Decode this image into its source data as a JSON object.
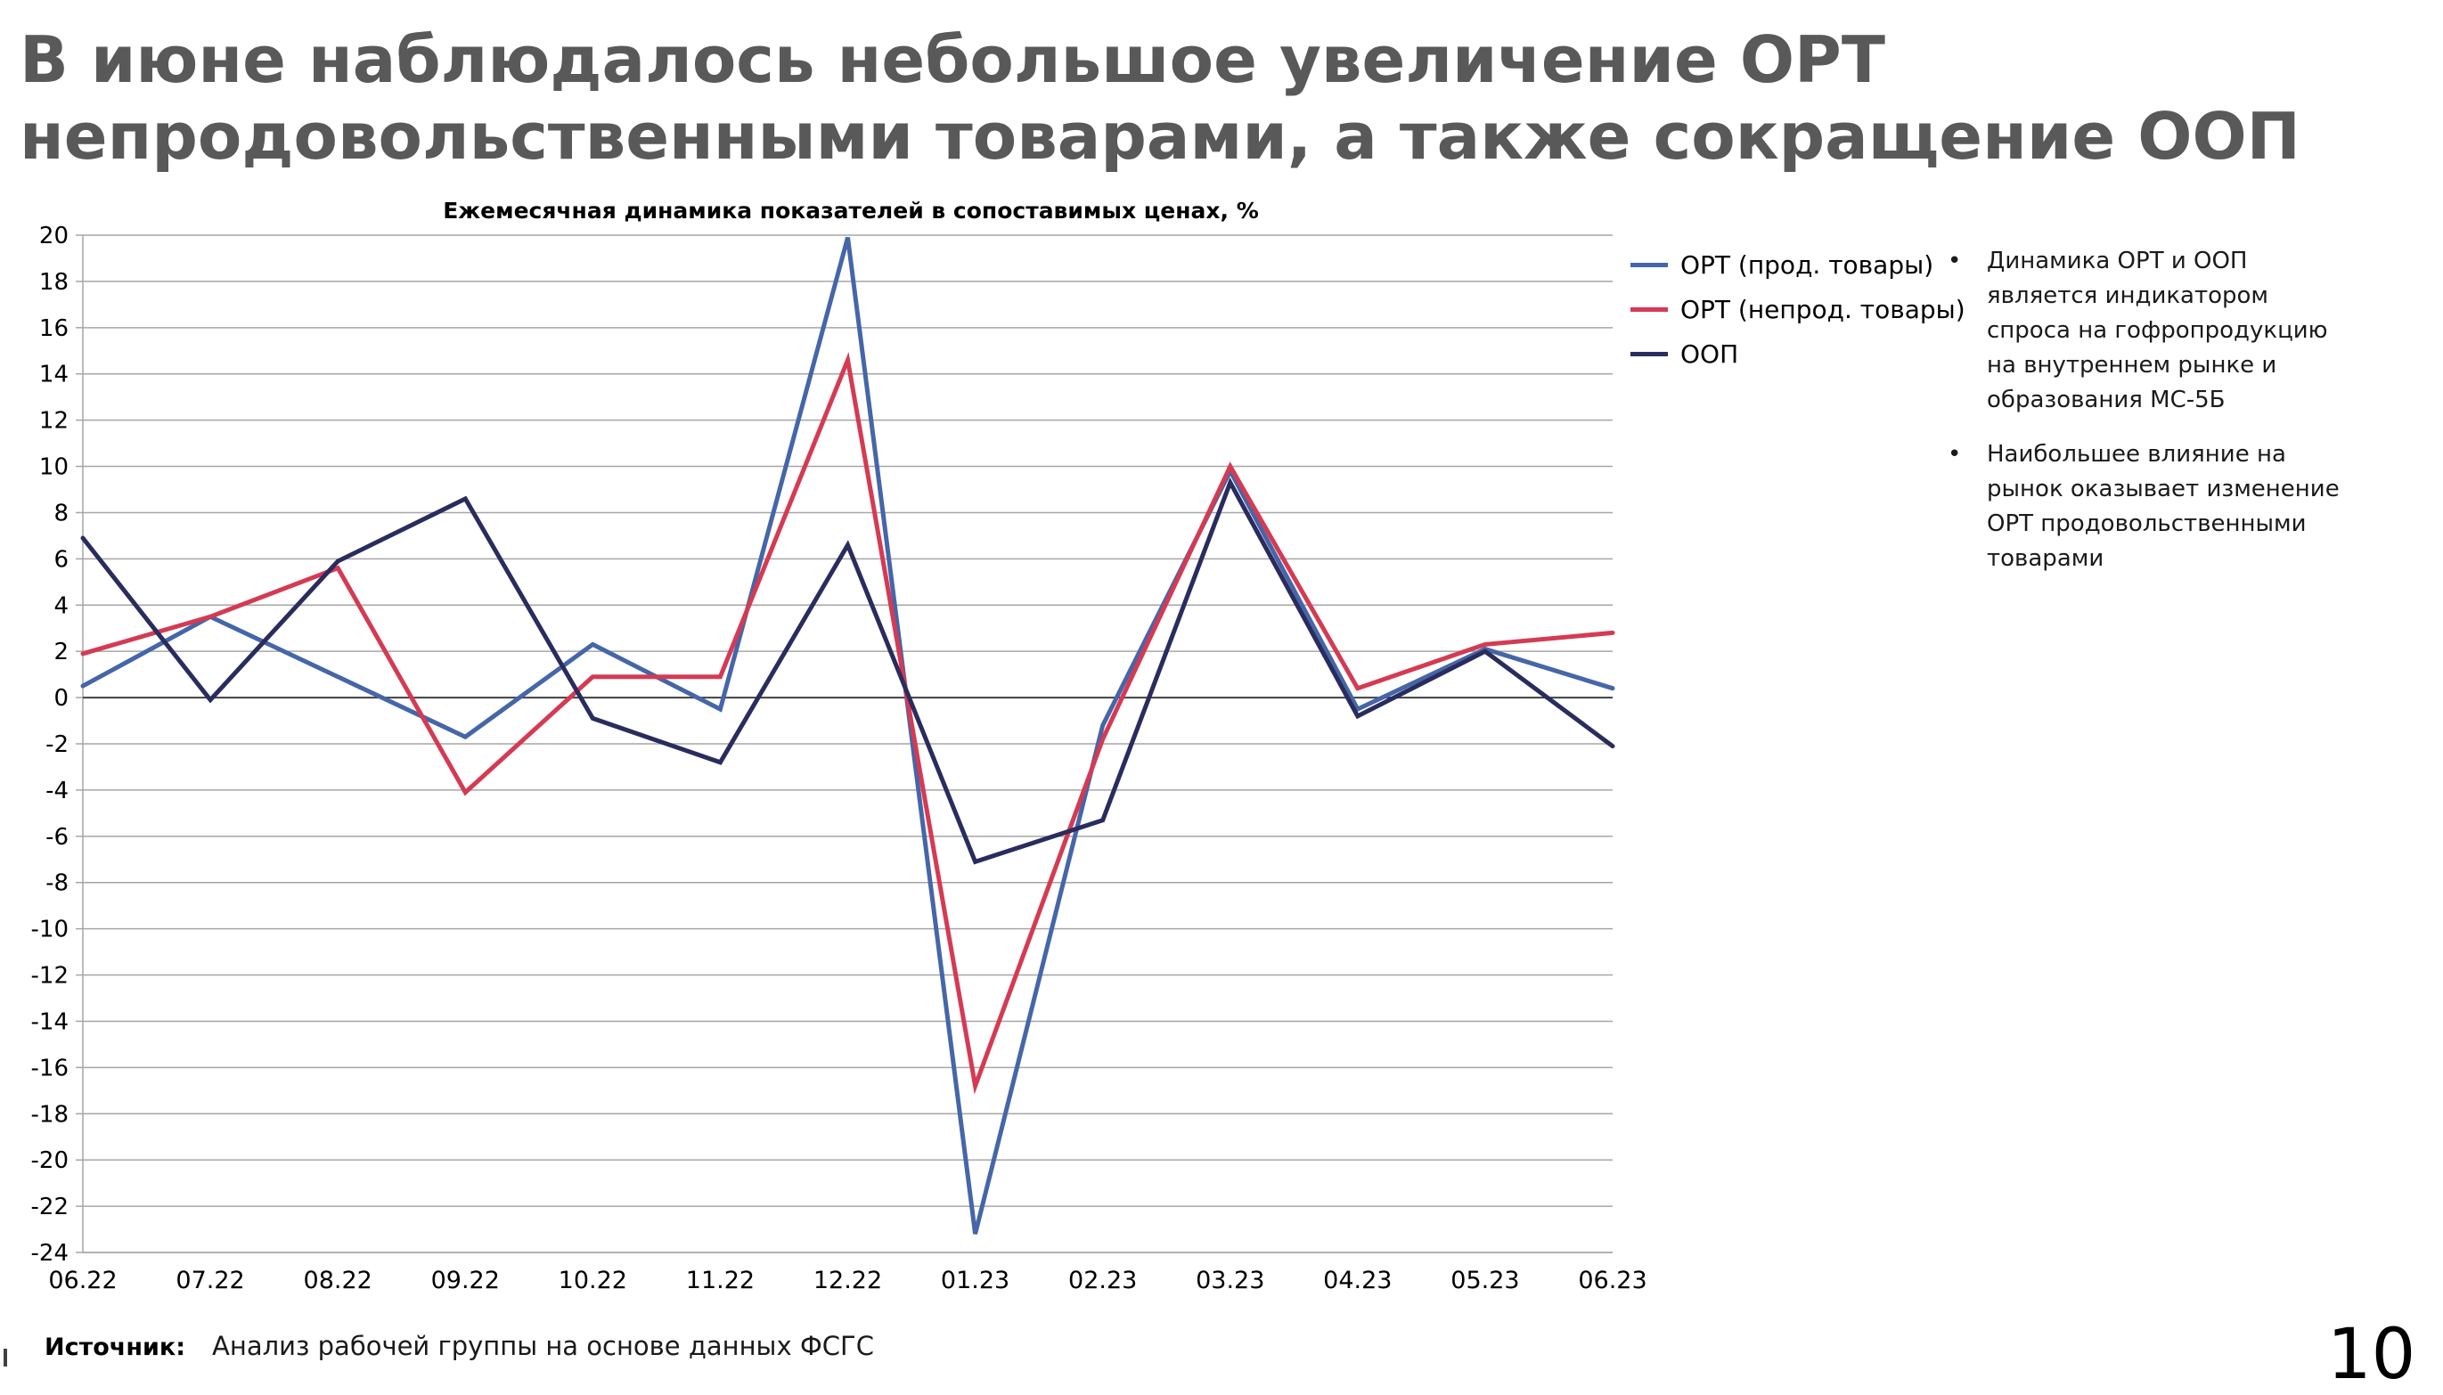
{
  "slide": {
    "title_line1": "В июне наблюдалось небольшое увеличение ОРТ",
    "title_line2": "непродовольственными товарами, а также сокращение ООП",
    "notes": [
      "Динамика ОРТ и ООП является индикатором спроса на гофропродукцию на внутреннем рынке и образования МС-5Б",
      "Наибольшее влияние на рынок оказывает изменение ОРТ продовольственными товарами"
    ],
    "bullet": "•",
    "source_label": "Источник:",
    "source_text": "Анализ рабочей группы на основе данных ФСГС",
    "page_number": "10"
  },
  "colors": {
    "food": "#4566A8",
    "nonfood": "#D53A53",
    "oop": "#2A2C5E",
    "grid": "#A6A6A6",
    "zero_line": "#404040"
  },
  "chart_data": {
    "type": "line",
    "title": "Ежемесячная динамика показателей в сопоставимых ценах, %",
    "xlabel": "",
    "ylabel": "",
    "categories": [
      "06.22",
      "07.22",
      "08.22",
      "09.22",
      "10.22",
      "11.22",
      "12.22",
      "01.23",
      "02.23",
      "03.23",
      "04.23",
      "05.23",
      "06.23"
    ],
    "ylim": [
      -24,
      20
    ],
    "ytick_step": 2,
    "grid": true,
    "legend": "right",
    "series": [
      {
        "name": "ОРТ (прод. товары)",
        "color_key": "food",
        "values": [
          0.5,
          3.5,
          0.9,
          -1.7,
          2.3,
          -0.5,
          19.9,
          -23.2,
          -1.2,
          9.8,
          -0.5,
          2.1,
          0.4
        ]
      },
      {
        "name": "ОРТ (непрод. товары)",
        "color_key": "nonfood",
        "values": [
          1.9,
          3.5,
          5.6,
          -4.1,
          0.9,
          0.9,
          14.6,
          -16.8,
          -1.8,
          10.0,
          0.4,
          2.3,
          2.8
        ]
      },
      {
        "name": "ООП",
        "color_key": "oop",
        "values": [
          6.9,
          -0.1,
          5.9,
          8.6,
          -0.9,
          -2.8,
          6.6,
          -7.1,
          -5.3,
          9.3,
          -0.8,
          2.0,
          -2.1
        ]
      }
    ]
  }
}
